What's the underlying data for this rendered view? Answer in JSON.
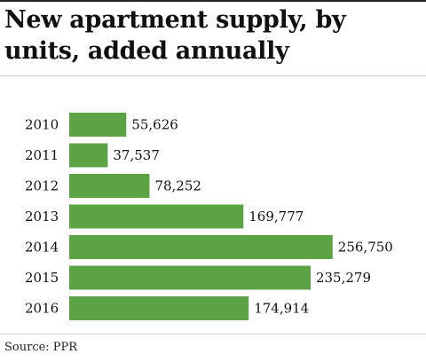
{
  "chart_data": {
    "type": "bar",
    "orientation": "horizontal",
    "title": "New apartment supply, by units, added annually",
    "categories": [
      "2010",
      "2011",
      "2012",
      "2013",
      "2014",
      "2015",
      "2016"
    ],
    "values": [
      55626,
      37537,
      78252,
      169777,
      256750,
      235279,
      174914
    ],
    "value_labels": [
      "55,626",
      "37,537",
      "78,252",
      "169,777",
      "256,750",
      "235,279",
      "174,914"
    ],
    "bar_color": "#5ba345",
    "grid": false,
    "legend": "none"
  },
  "footer": {
    "source": "Source: PPR"
  }
}
